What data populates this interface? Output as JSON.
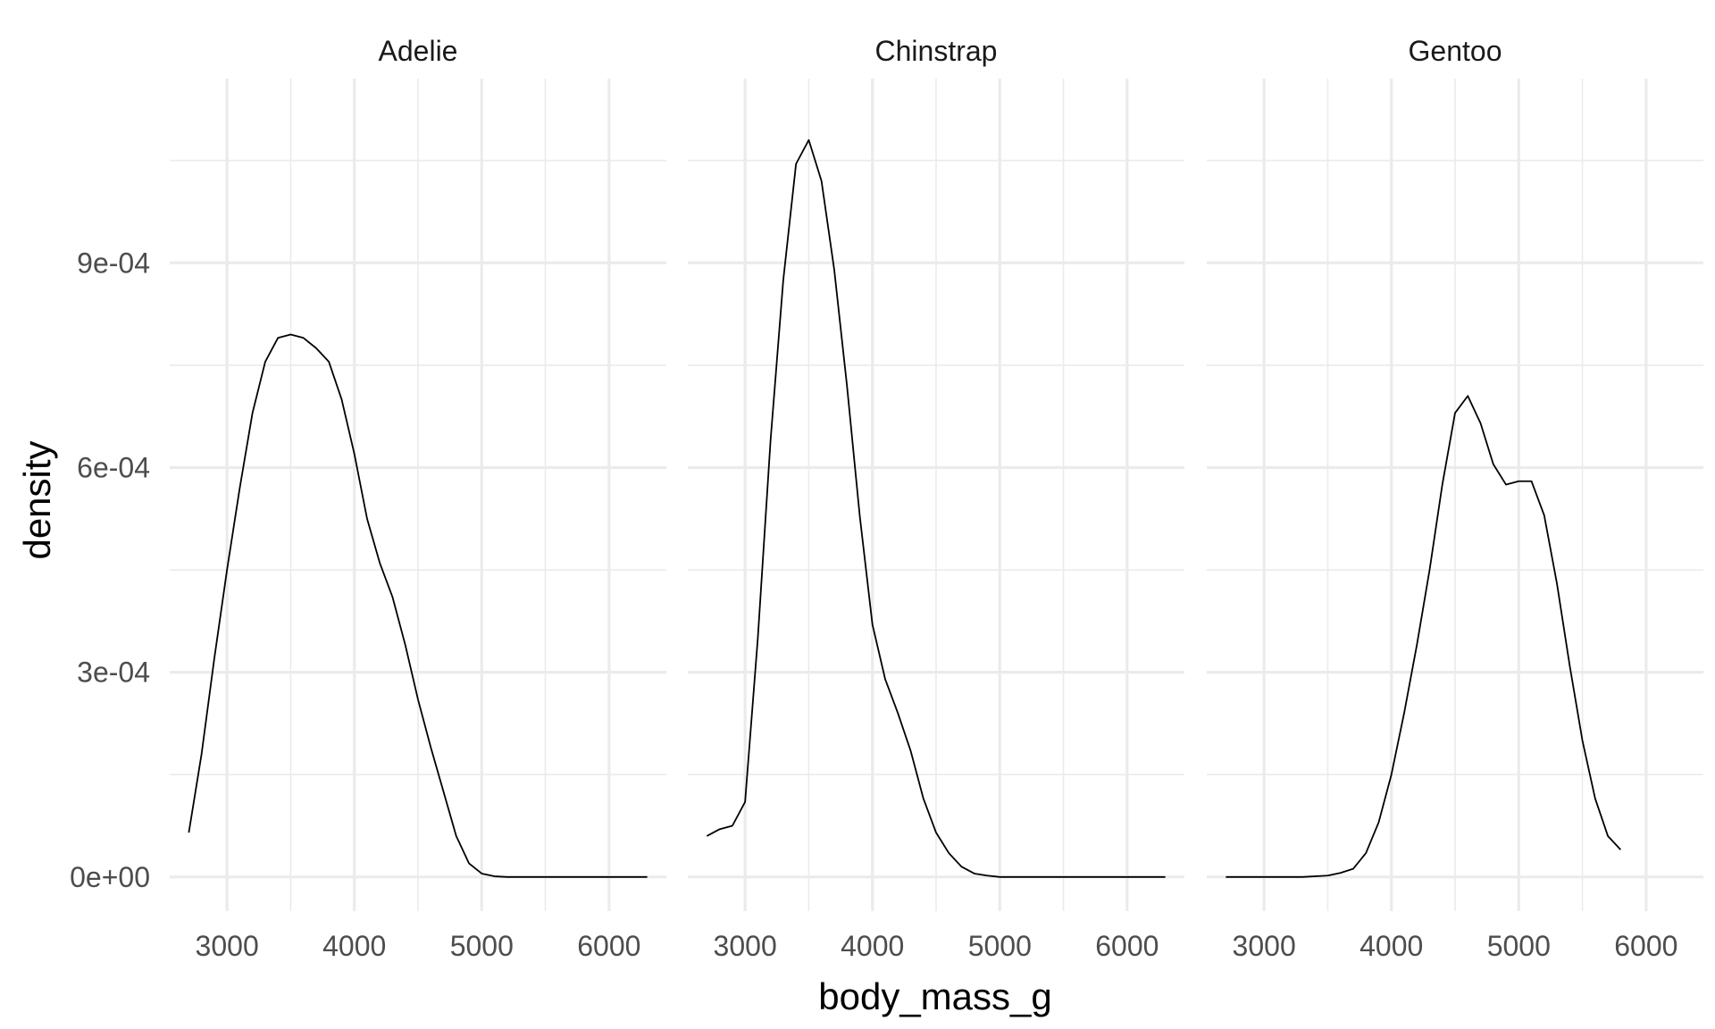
{
  "chart_data": {
    "type": "line",
    "subtype": "faceted density",
    "xlabel": "body_mass_g",
    "ylabel": "density",
    "xlim": [
      2550,
      6450
    ],
    "ylim": [
      -5e-05,
      0.00117
    ],
    "x_ticks": [
      3000,
      4000,
      5000,
      6000
    ],
    "x_tick_labels": [
      "3000",
      "4000",
      "5000",
      "6000"
    ],
    "y_ticks": [
      0,
      0.0003,
      0.0006,
      0.0009
    ],
    "y_tick_labels": [
      "0e+00",
      "3e-04",
      "6e-04",
      "9e-04"
    ],
    "grid": true,
    "facets": [
      {
        "name": "Adelie",
        "points": [
          [
            2700,
            6.5e-05
          ],
          [
            2800,
            0.00018
          ],
          [
            2900,
            0.00032
          ],
          [
            3000,
            0.00045
          ],
          [
            3100,
            0.00057
          ],
          [
            3200,
            0.00068
          ],
          [
            3300,
            0.000755
          ],
          [
            3400,
            0.00079
          ],
          [
            3500,
            0.000795
          ],
          [
            3600,
            0.00079
          ],
          [
            3700,
            0.000775
          ],
          [
            3800,
            0.000755
          ],
          [
            3900,
            0.0007
          ],
          [
            4000,
            0.00062
          ],
          [
            4100,
            0.000525
          ],
          [
            4200,
            0.00046
          ],
          [
            4300,
            0.00041
          ],
          [
            4400,
            0.00034
          ],
          [
            4500,
            0.00026
          ],
          [
            4600,
            0.00019
          ],
          [
            4700,
            0.000125
          ],
          [
            4800,
            6e-05
          ],
          [
            4900,
            2e-05
          ],
          [
            5000,
            5e-06
          ],
          [
            5100,
            1e-06
          ],
          [
            5200,
            0
          ],
          [
            5400,
            0
          ],
          [
            6000,
            0
          ],
          [
            6300,
            0
          ]
        ]
      },
      {
        "name": "Chinstrap",
        "points": [
          [
            2700,
            6e-05
          ],
          [
            2800,
            7e-05
          ],
          [
            2900,
            7.5e-05
          ],
          [
            3000,
            0.00011
          ],
          [
            3100,
            0.00035
          ],
          [
            3200,
            0.00064
          ],
          [
            3300,
            0.000875
          ],
          [
            3400,
            0.001045
          ],
          [
            3500,
            0.00108
          ],
          [
            3600,
            0.00102
          ],
          [
            3700,
            0.00089
          ],
          [
            3800,
            0.00072
          ],
          [
            3900,
            0.00053
          ],
          [
            4000,
            0.00037
          ],
          [
            4100,
            0.00029
          ],
          [
            4200,
            0.00024
          ],
          [
            4300,
            0.000185
          ],
          [
            4400,
            0.000115
          ],
          [
            4500,
            6.5e-05
          ],
          [
            4600,
            3.5e-05
          ],
          [
            4700,
            1.5e-05
          ],
          [
            4800,
            5e-06
          ],
          [
            4900,
            2e-06
          ],
          [
            5000,
            0
          ],
          [
            5200,
            0
          ],
          [
            6000,
            0
          ],
          [
            6300,
            0
          ]
        ]
      },
      {
        "name": "Gentoo",
        "points": [
          [
            2700,
            0
          ],
          [
            3000,
            0
          ],
          [
            3300,
            0
          ],
          [
            3500,
            2e-06
          ],
          [
            3600,
            6e-06
          ],
          [
            3700,
            1.2e-05
          ],
          [
            3800,
            3.5e-05
          ],
          [
            3900,
            8e-05
          ],
          [
            4000,
            0.00015
          ],
          [
            4100,
            0.00024
          ],
          [
            4200,
            0.00034
          ],
          [
            4300,
            0.00045
          ],
          [
            4400,
            0.000575
          ],
          [
            4500,
            0.00068
          ],
          [
            4600,
            0.000705
          ],
          [
            4700,
            0.000665
          ],
          [
            4800,
            0.000605
          ],
          [
            4900,
            0.000575
          ],
          [
            5000,
            0.00058
          ],
          [
            5100,
            0.00058
          ],
          [
            5200,
            0.00053
          ],
          [
            5300,
            0.00043
          ],
          [
            5400,
            0.00031
          ],
          [
            5500,
            0.0002
          ],
          [
            5600,
            0.000115
          ],
          [
            5700,
            6e-05
          ],
          [
            5800,
            4e-05
          ]
        ]
      }
    ]
  }
}
